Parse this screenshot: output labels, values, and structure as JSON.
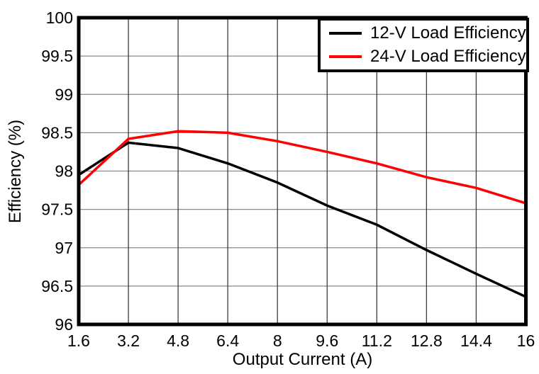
{
  "chart_data": {
    "type": "line",
    "title": "",
    "xlabel": "Output Current (A)",
    "ylabel": "Efficiency (%)",
    "xlim": [
      1.6,
      16
    ],
    "ylim": [
      96,
      100
    ],
    "grid": true,
    "legend_position": "top-right",
    "x": [
      1.6,
      3.2,
      4.8,
      6.4,
      8,
      9.6,
      11.2,
      12.8,
      14.4,
      16
    ],
    "x_tick_labels": [
      "1.6",
      "3.2",
      "4.8",
      "6.4",
      "8",
      "9.6",
      "11.2",
      "12.8",
      "14.4",
      "16"
    ],
    "y_ticks": [
      96,
      96.5,
      97,
      97.5,
      98,
      98.5,
      99,
      99.5,
      100
    ],
    "y_tick_labels": [
      "96",
      "96.5",
      "97",
      "97.5",
      "98",
      "98.5",
      "99",
      "99.5",
      "100"
    ],
    "series": [
      {
        "name": "12-V Load Efficiency",
        "color": "#000000",
        "values": [
          97.95,
          98.37,
          98.3,
          98.1,
          97.85,
          97.55,
          97.3,
          96.97,
          96.66,
          96.36
        ]
      },
      {
        "name": "24-V Load Efficiency",
        "color": "#ff0000",
        "values": [
          97.82,
          98.42,
          98.52,
          98.5,
          98.39,
          98.25,
          98.1,
          97.92,
          97.78,
          97.58
        ]
      }
    ]
  },
  "colors": {
    "background": "#ffffff",
    "axis_border": "#000000",
    "grid_horizontal": "#888888",
    "grid_vertical": "#3c3c3c",
    "tick_label": "#000000"
  }
}
